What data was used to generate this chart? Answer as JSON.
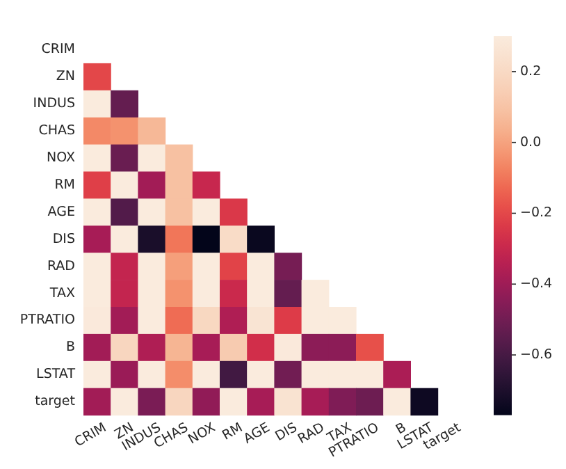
{
  "chart_data": {
    "type": "heatmap",
    "categories": [
      "CRIM",
      "ZN",
      "INDUS",
      "CHAS",
      "NOX",
      "RM",
      "AGE",
      "DIS",
      "RAD",
      "TAX",
      "PTRATIO",
      "B",
      "LSTAT",
      "target"
    ],
    "y_categories": [
      "CRIM",
      "ZN",
      "INDUS",
      "CHAS",
      "NOX",
      "RM",
      "AGE",
      "DIS",
      "RAD",
      "TAX",
      "PTRATIO",
      "B",
      "LSTAT",
      "target"
    ],
    "cells": [
      [
        null,
        null,
        null,
        null,
        null,
        null,
        null,
        null,
        null,
        null,
        null,
        null,
        null,
        null
      ],
      [
        -0.2,
        null,
        null,
        null,
        null,
        null,
        null,
        null,
        null,
        null,
        null,
        null,
        null,
        null
      ],
      [
        0.3,
        -0.53,
        null,
        null,
        null,
        null,
        null,
        null,
        null,
        null,
        null,
        null,
        null,
        null
      ],
      [
        -0.06,
        -0.04,
        0.06,
        null,
        null,
        null,
        null,
        null,
        null,
        null,
        null,
        null,
        null,
        null
      ],
      [
        0.3,
        -0.52,
        0.3,
        0.09,
        null,
        null,
        null,
        null,
        null,
        null,
        null,
        null,
        null,
        null
      ],
      [
        -0.22,
        0.3,
        -0.39,
        0.09,
        -0.3,
        null,
        null,
        null,
        null,
        null,
        null,
        null,
        null,
        null
      ],
      [
        0.3,
        -0.57,
        0.3,
        0.09,
        0.3,
        -0.24,
        null,
        null,
        null,
        null,
        null,
        null,
        null,
        null
      ],
      [
        -0.38,
        0.3,
        -0.71,
        -0.1,
        -0.77,
        0.21,
        -0.75,
        null,
        null,
        null,
        null,
        null,
        null,
        null
      ],
      [
        0.3,
        -0.31,
        0.3,
        -0.01,
        0.3,
        -0.21,
        0.3,
        -0.49,
        null,
        null,
        null,
        null,
        null,
        null
      ],
      [
        0.3,
        -0.31,
        0.3,
        -0.04,
        0.3,
        -0.29,
        0.3,
        -0.53,
        0.3,
        null,
        null,
        null,
        null,
        null
      ],
      [
        0.29,
        -0.39,
        0.3,
        -0.12,
        0.19,
        -0.36,
        0.26,
        -0.23,
        0.3,
        0.3,
        null,
        null,
        null,
        null
      ],
      [
        -0.39,
        0.18,
        -0.36,
        0.05,
        -0.38,
        0.13,
        -0.27,
        0.29,
        -0.44,
        -0.44,
        -0.18,
        null,
        null,
        null
      ],
      [
        0.3,
        -0.41,
        0.3,
        -0.05,
        0.3,
        -0.61,
        0.3,
        -0.5,
        0.3,
        0.3,
        0.3,
        -0.37,
        null,
        null
      ],
      [
        -0.39,
        0.3,
        -0.48,
        0.18,
        -0.43,
        0.3,
        -0.38,
        0.25,
        -0.38,
        -0.47,
        -0.51,
        0.3,
        -0.74,
        null
      ]
    ],
    "clim": [
      -0.77,
      0.3
    ],
    "cticks": [
      {
        "value": 0.2,
        "label": "0.2"
      },
      {
        "value": 0,
        "label": "0.0"
      },
      {
        "value": -0.2,
        "label": "−0.2"
      },
      {
        "value": -0.4,
        "label": "−0.4"
      },
      {
        "value": -0.6,
        "label": "−0.6"
      }
    ]
  }
}
